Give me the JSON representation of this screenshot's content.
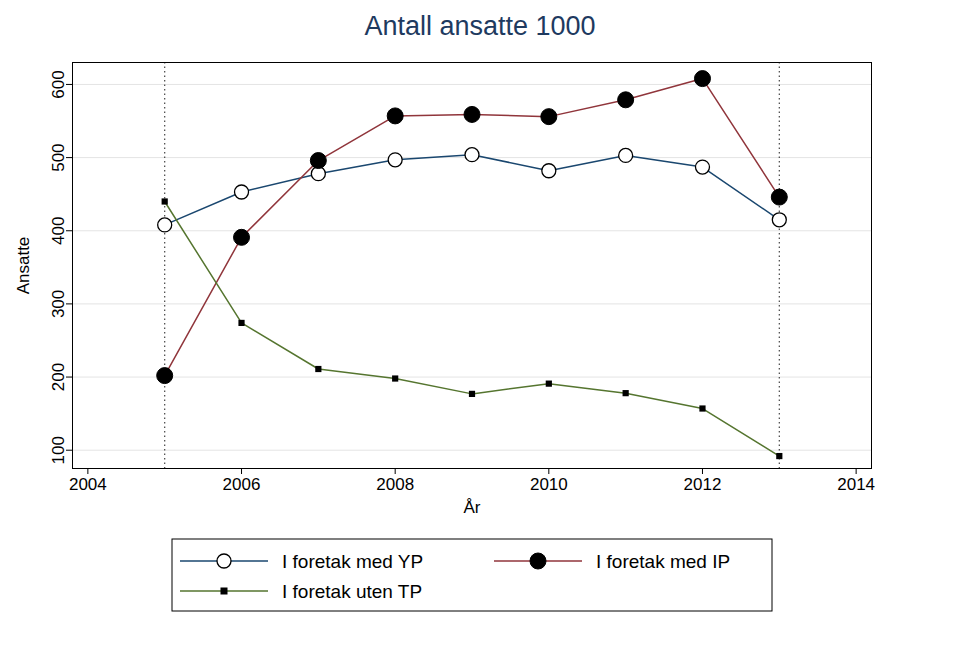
{
  "chart_data": {
    "type": "line",
    "title": "Antall ansatte 1000",
    "x_label": "År",
    "y_label": "Ansatte",
    "x": [
      2005,
      2006,
      2007,
      2008,
      2009,
      2010,
      2011,
      2012,
      2013
    ],
    "series": [
      {
        "name": "I foretak med YP",
        "color": "#1a476f",
        "marker": "circle-hollow",
        "values": [
          408,
          453,
          478,
          497,
          504,
          482,
          503,
          487,
          415
        ]
      },
      {
        "name": "I foretak med IP",
        "color": "#90353b",
        "marker": "circle",
        "values": [
          202,
          391,
          496,
          557,
          559,
          556,
          579,
          608,
          446
        ]
      },
      {
        "name": "I foretak uten TP",
        "color": "#55752f",
        "marker": "square",
        "values": [
          440,
          274,
          211,
          198,
          177,
          191,
          178,
          157,
          92
        ]
      }
    ],
    "xlim": [
      2003.8,
      2014.2
    ],
    "xticks": [
      2004,
      2006,
      2008,
      2010,
      2012,
      2014
    ],
    "ylim": [
      75,
      630
    ],
    "yticks": [
      100,
      200,
      300,
      400,
      500,
      600
    ],
    "vlines": [
      2005,
      2013
    ],
    "grid": true,
    "legend": "bottom"
  }
}
